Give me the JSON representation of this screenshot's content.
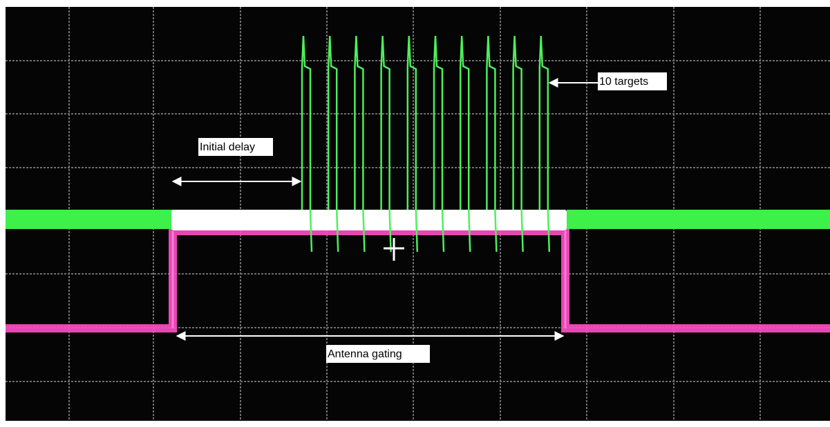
{
  "annotations": {
    "initial_delay": "Initial delay",
    "targets": "10 targets",
    "antenna_gating": "Antenna gating"
  }
}
